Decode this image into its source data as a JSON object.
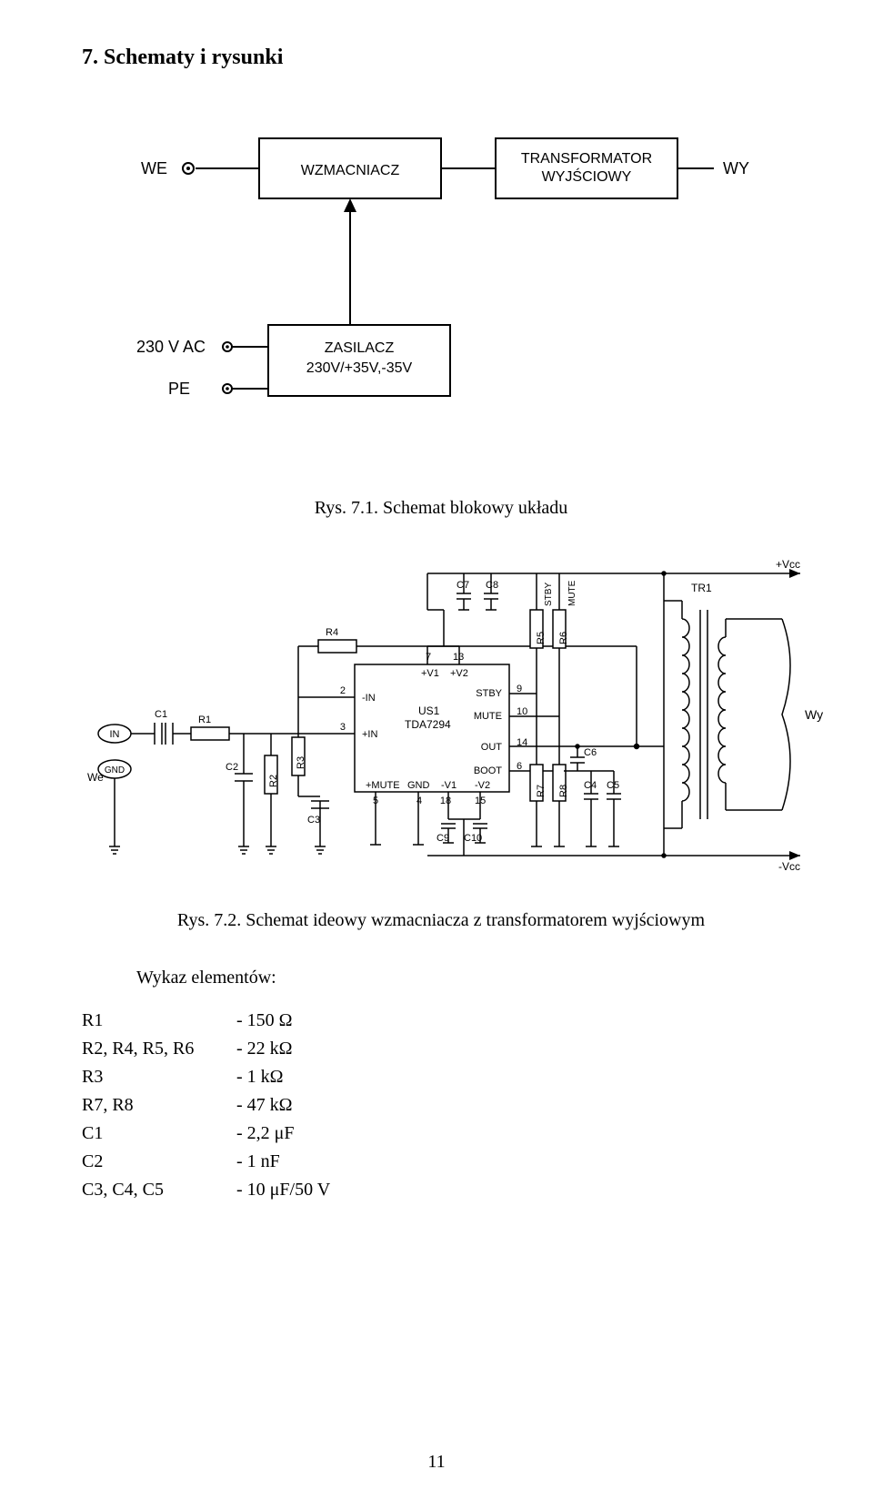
{
  "section_title": "7. Schematy i rysunki",
  "block_diagram": {
    "we_label": "WE",
    "wy_label": "WY",
    "amp_label": "WZMACNIACZ",
    "trans_line1": "TRANSFORMATOR",
    "trans_line2": "WYJŚCIOWY",
    "ac_label": "230 V  AC",
    "pe_label": "PE",
    "psu_line1": "ZASILACZ",
    "psu_line2": "230V/+35V,-35V",
    "box_stroke": "#000000",
    "box_fill": "#ffffff",
    "line_color": "#000000",
    "text_color": "#000000",
    "font_size_label": 16,
    "font_size_side": 18
  },
  "caption1": "Rys. 7.1. Schemat blokowy układu",
  "schematic": {
    "ic_name": "US1",
    "ic_part": "TDA7294",
    "pins": {
      "p2": {
        "num": "2",
        "name": "-IN"
      },
      "p3": {
        "num": "3",
        "name": "+IN"
      },
      "p5": {
        "num": "5",
        "name": "+MUTE"
      },
      "p4": {
        "num": "4",
        "name": "GND"
      },
      "p1": {
        "num": "1"
      },
      "p7": {
        "num": "7",
        "name": "+V1"
      },
      "p13": {
        "num": "13",
        "name": "+V2"
      },
      "p8": {
        "num": "8",
        "name": "-V1"
      },
      "p15": {
        "num": "15",
        "name": "-V2"
      },
      "p9": {
        "num": "9",
        "name": "STBY"
      },
      "p10": {
        "num": "10",
        "name": "MUTE"
      },
      "p14": {
        "num": "14",
        "name": "OUT"
      },
      "p6": {
        "num": "6",
        "name": "BOOT"
      }
    },
    "refs": {
      "C1": "C1",
      "C2": "C2",
      "C3": "C3",
      "C4": "C4",
      "C5": "C5",
      "C6": "C6",
      "C7": "C7",
      "C8": "C8",
      "C9": "C9",
      "C10": "C10",
      "R1": "R1",
      "R2": "R2",
      "R3": "R3",
      "R4": "R4",
      "R5": "R5",
      "R6": "R6",
      "R7": "R7",
      "R8": "R8",
      "TR1": "TR1"
    },
    "labels": {
      "in": "IN",
      "we": "We",
      "gnd": "GND",
      "wy": "Wy",
      "plus_vcc": "+Vcc",
      "minus_vcc": "-Vcc",
      "stby_v": "STBY",
      "mute_v": "MUTE"
    },
    "line_color": "#000000",
    "text_color": "#000000",
    "font_size": 12
  },
  "caption2": "Rys. 7.2. Schemat ideowy wzmacniacza z transformatorem wyjściowym",
  "components_heading": "Wykaz elementów:",
  "components": [
    {
      "ref": "R1",
      "val": "- 150 Ω"
    },
    {
      "ref": "R2, R4, R5, R6",
      "val": "- 22 kΩ"
    },
    {
      "ref": "R3",
      "val": "- 1 kΩ"
    },
    {
      "ref": "R7, R8",
      "val": "- 47 kΩ"
    },
    {
      "ref": "C1",
      "val": "- 2,2 μF"
    },
    {
      "ref": "C2",
      "val": "- 1 nF"
    },
    {
      "ref": "C3, C4, C5",
      "val": "- 10 μF/50 V"
    }
  ],
  "page_number": "11"
}
